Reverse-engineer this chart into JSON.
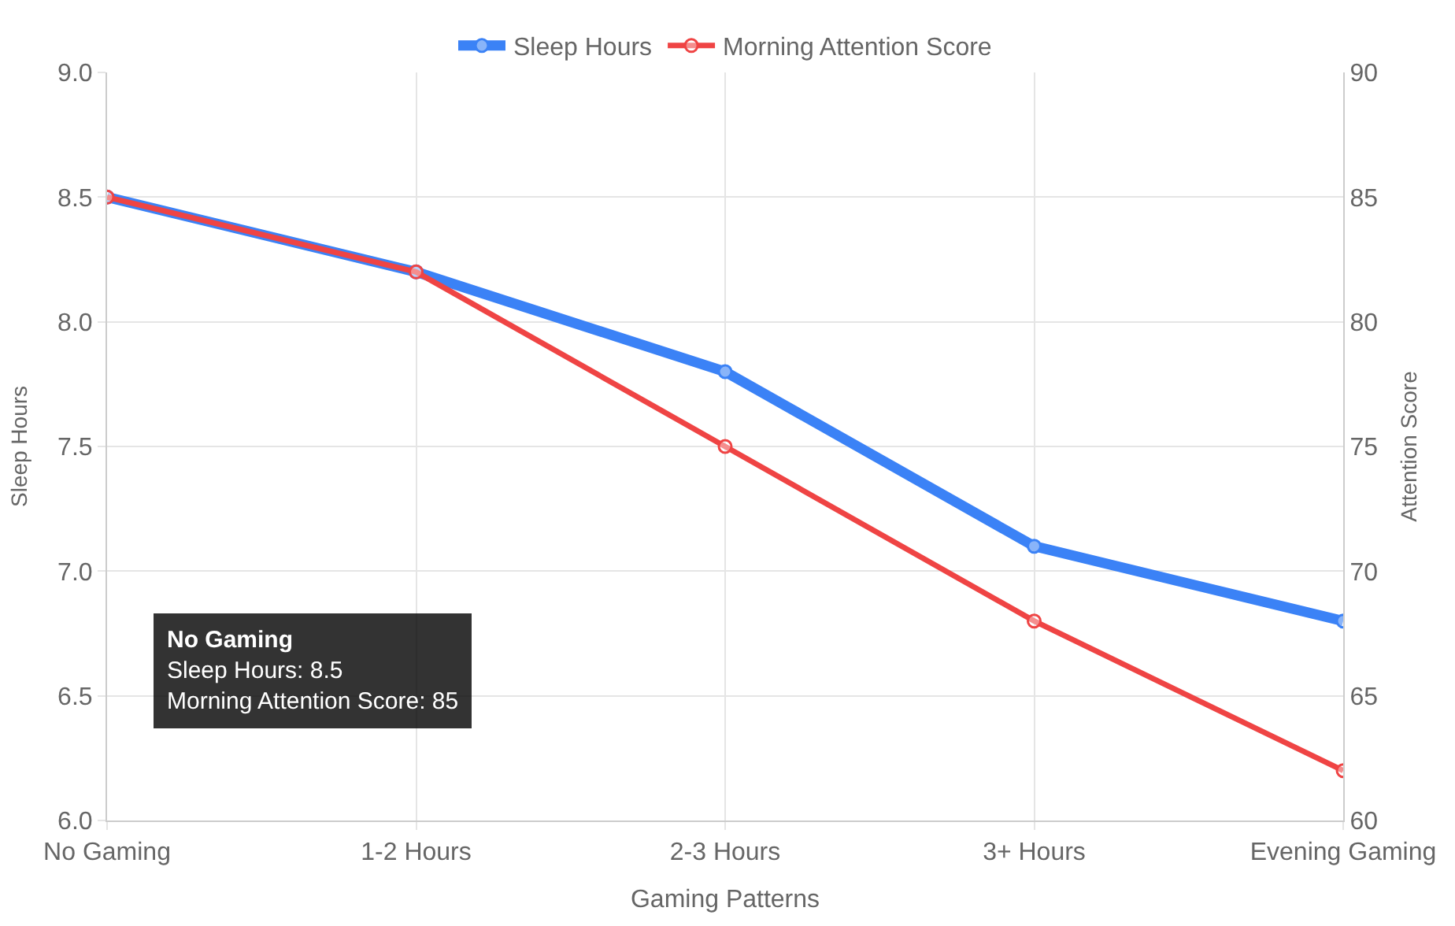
{
  "chart_data": {
    "type": "line",
    "xlabel": "Gaming Patterns",
    "ylabel": "Sleep Hours",
    "y2label": "Attention Score",
    "categories": [
      "No Gaming",
      "1-2 Hours",
      "2-3 Hours",
      "3+ Hours",
      "Evening Gaming"
    ],
    "series": [
      {
        "name": "Sleep Hours",
        "color": "#3b82f6",
        "values": [
          8.5,
          8.2,
          7.8,
          7.1,
          6.8
        ]
      },
      {
        "name": "Morning Attention Score",
        "color": "#ef4444",
        "values": [
          85,
          82,
          75,
          68,
          62
        ],
        "axis": "y2"
      }
    ],
    "ylim": [
      6.0,
      9.0
    ],
    "yticks": [
      {
        "value": 6,
        "label": "6.0"
      },
      {
        "value": 6.5,
        "label": "6.5"
      },
      {
        "value": 7,
        "label": "7.0"
      },
      {
        "value": 7.5,
        "label": "7.5"
      },
      {
        "value": 8,
        "label": "8.0"
      },
      {
        "value": 8.5,
        "label": "8.5"
      },
      {
        "value": 9,
        "label": "9.0"
      }
    ],
    "y2lim": [
      60,
      90
    ],
    "y2ticks": [
      60,
      65,
      70,
      75,
      80,
      85,
      90
    ],
    "annotations": [
      "No Gaming",
      "Sleep Hours: 8.5",
      "Morning Attention Score: 85"
    ],
    "grid": true,
    "legend": "top",
    "marker": "circle",
    "line_style": "solid"
  }
}
